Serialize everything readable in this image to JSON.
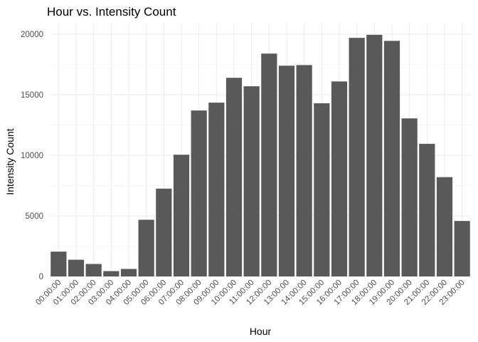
{
  "chart_data": {
    "type": "bar",
    "title": "Hour vs. Intensity Count",
    "xlabel": "Hour",
    "ylabel": "Intensity Count",
    "categories": [
      "00:00:00",
      "01:00:00",
      "02:00:00",
      "03:00:00",
      "04:00:00",
      "05:00:00",
      "06:00:00",
      "07:00:00",
      "08:00:00",
      "09:00:00",
      "10:00:00",
      "11:00:00",
      "12:00:00",
      "13:00:00",
      "14:00:00",
      "15:00:00",
      "16:00:00",
      "17:00:00",
      "18:00:00",
      "19:00:00",
      "20:00:00",
      "21:00:00",
      "22:00:00",
      "23:00:00"
    ],
    "values": [
      2050,
      1380,
      1030,
      440,
      620,
      4680,
      7250,
      10050,
      13700,
      14350,
      16400,
      15700,
      18400,
      17400,
      17450,
      14300,
      16100,
      19700,
      19950,
      19450,
      13050,
      10950,
      8200,
      4580
    ],
    "ylim": [
      0,
      20000
    ],
    "yticks": [
      0,
      5000,
      10000,
      15000,
      20000
    ],
    "ytick_labels": [
      "0",
      "5000",
      "10000",
      "15000",
      "20000"
    ],
    "grid": true,
    "bar_color": "#595959"
  }
}
